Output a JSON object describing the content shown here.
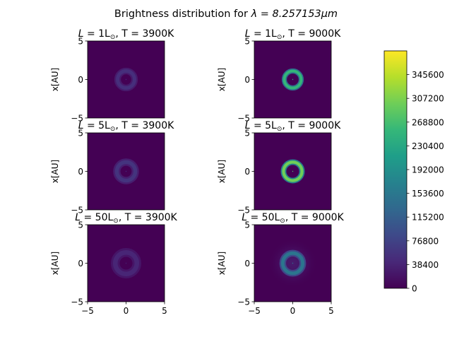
{
  "figure": {
    "title_prefix": "Brightness distribution for ",
    "title_lambda": "λ = 8.257153",
    "title_unit": "μm"
  },
  "chart_data": {
    "type": "heatmap",
    "grid": {
      "rows": 3,
      "cols": 2
    },
    "xlim": [
      -5,
      5
    ],
    "ylim": [
      -5,
      5
    ],
    "xticks": [
      "−5",
      "0",
      "5"
    ],
    "yticks": [
      "5",
      "0",
      "−5"
    ],
    "ylabel": "x[AU]",
    "colormap": "viridis",
    "panels": [
      {
        "L": "1",
        "T": "3900",
        "ring_radius_au": 1.1,
        "ring_width_au": 0.45,
        "ring_peak": 52000,
        "halo": 0,
        "row": 0,
        "col": 0
      },
      {
        "L": "1",
        "T": "9000",
        "ring_radius_au": 1.1,
        "ring_width_au": 0.35,
        "ring_peak": 255000,
        "halo": 0,
        "row": 0,
        "col": 1
      },
      {
        "L": "5",
        "T": "3900",
        "ring_radius_au": 1.2,
        "ring_width_au": 0.5,
        "ring_peak": 58000,
        "halo": 0,
        "row": 1,
        "col": 0
      },
      {
        "L": "5",
        "T": "9000",
        "ring_radius_au": 1.2,
        "ring_width_au": 0.38,
        "ring_peak": 300000,
        "halo": 0,
        "row": 1,
        "col": 1
      },
      {
        "L": "50",
        "T": "3900",
        "ring_radius_au": 1.4,
        "ring_width_au": 0.6,
        "ring_peak": 40000,
        "halo": 0,
        "row": 2,
        "col": 0
      },
      {
        "L": "50",
        "T": "9000",
        "ring_radius_au": 1.3,
        "ring_width_au": 0.45,
        "ring_peak": 150000,
        "halo": 30000,
        "row": 2,
        "col": 1
      }
    ],
    "colorbar": {
      "min": 0,
      "max": 384000,
      "ticks": [
        "0",
        "38400",
        "76800",
        "115200",
        "153600",
        "192000",
        "230400",
        "268800",
        "307200",
        "345600"
      ]
    },
    "palette": [
      "#440154",
      "#482878",
      "#3e4989",
      "#31688e",
      "#26828e",
      "#1f9e89",
      "#35b779",
      "#6ece58",
      "#b5de2b",
      "#fde725"
    ]
  }
}
